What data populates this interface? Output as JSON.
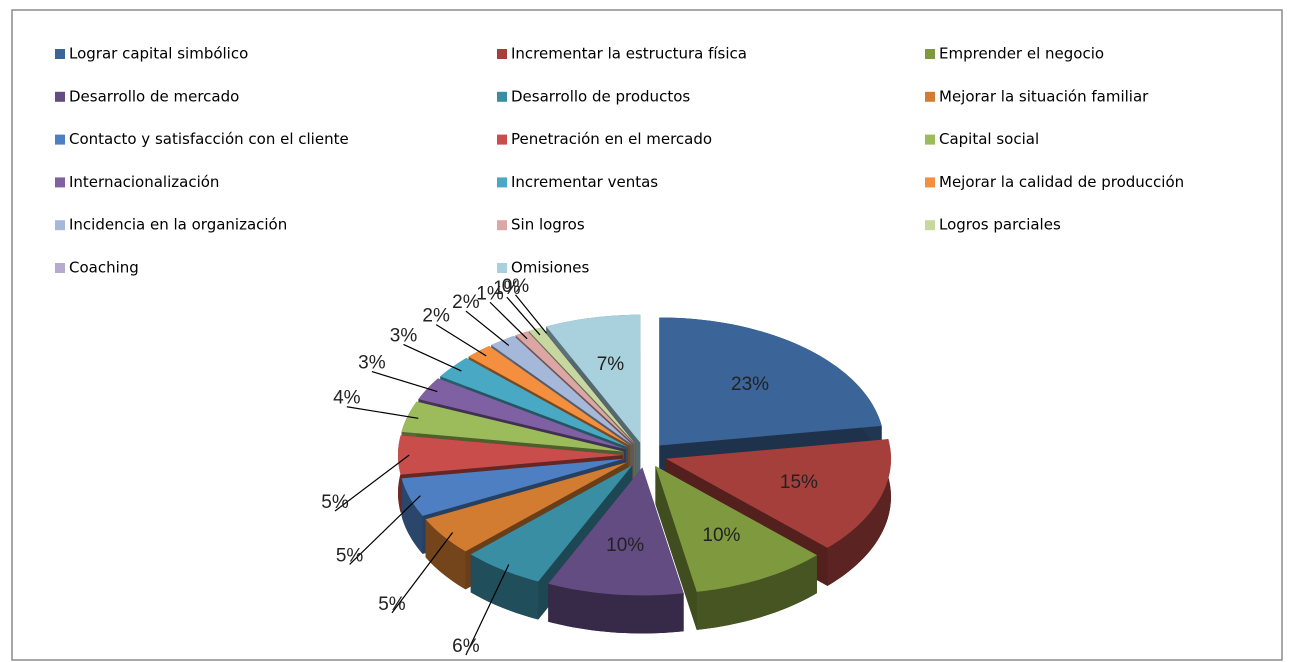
{
  "chart_data": {
    "type": "pie3d",
    "categories": [
      "Lograr capital simbólico",
      "Incrementar la estructura física",
      "Emprender el negocio",
      "Desarrollo de mercado",
      "Desarrollo de productos",
      "Mejorar la situación familiar",
      "Contacto y satisfacción con el cliente",
      "Penetración en el mercado",
      "Capital social",
      "Internacionalización",
      "Incrementar ventas",
      "Mejorar la calidad de producción",
      "Incidencia en la organización",
      "Sin logros",
      "Logros parciales",
      "Coaching",
      "Omisiones"
    ],
    "values": [
      23,
      15,
      10,
      10,
      6,
      5,
      5,
      5,
      4,
      3,
      3,
      2,
      2,
      1,
      1,
      0,
      7
    ],
    "value_labels": [
      "23%",
      "15%",
      "10%",
      "10%",
      "6%",
      "5%",
      "5%",
      "5%",
      "4%",
      "3%",
      "3%",
      "2%",
      "2%",
      "1%",
      "1%",
      "0%",
      "7%"
    ],
    "colors": [
      "#3b6498",
      "#a53f3c",
      "#7f9a3e",
      "#634c82",
      "#3a8ea4",
      "#d27c31",
      "#4d7fc2",
      "#c94e4b",
      "#9cbb5a",
      "#7f60a3",
      "#49a9c4",
      "#f38f3e",
      "#a6b8da",
      "#dba6a4",
      "#c6d8a0",
      "#b8a9cf",
      "#a8d0dd"
    ],
    "legend": "top"
  }
}
